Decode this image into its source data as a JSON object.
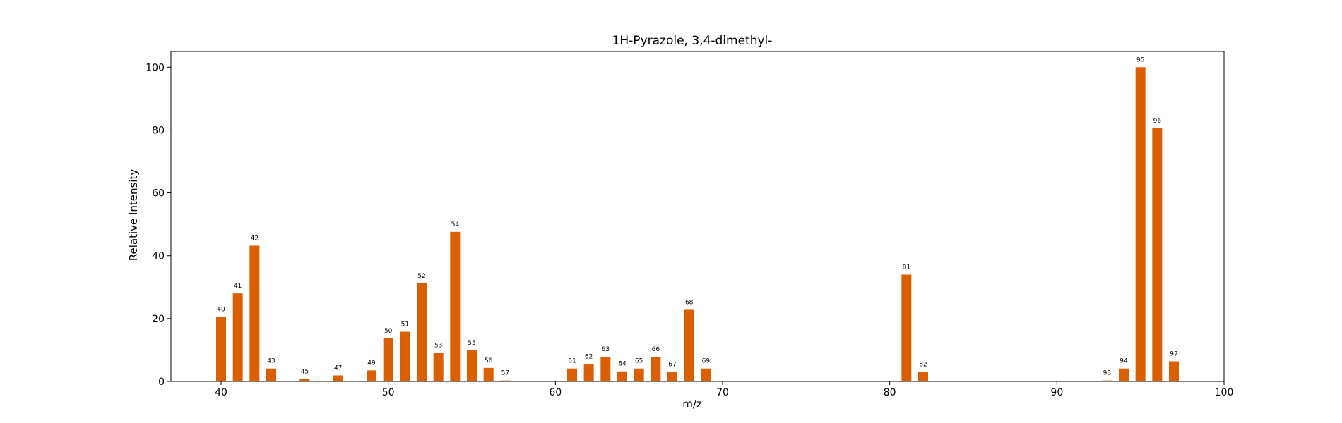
{
  "chart_data": {
    "type": "bar",
    "title": "1H-Pyrazole, 3,4-dimethyl-",
    "xlabel": "m/z",
    "ylabel": "Relative Intensity",
    "xlim": [
      37,
      100
    ],
    "ylim": [
      0,
      105
    ],
    "xticks": [
      40,
      50,
      60,
      70,
      80,
      90,
      100
    ],
    "yticks": [
      0,
      20,
      40,
      60,
      80,
      100
    ],
    "bar_color": "#d95f02",
    "grid": false,
    "x": [
      40,
      41,
      42,
      43,
      45,
      47,
      49,
      50,
      51,
      52,
      53,
      54,
      55,
      56,
      57,
      61,
      62,
      63,
      64,
      65,
      66,
      67,
      68,
      69,
      81,
      82,
      93,
      94,
      95,
      96,
      97
    ],
    "values": [
      20.5,
      28.0,
      43.2,
      4.1,
      0.8,
      1.9,
      3.5,
      13.7,
      15.8,
      31.2,
      9.1,
      47.6,
      9.9,
      4.3,
      0.3,
      4.1,
      5.5,
      7.8,
      3.2,
      4.1,
      7.8,
      3.0,
      22.8,
      4.1,
      34.0,
      3.0,
      0.3,
      4.1,
      100.0,
      80.6,
      6.4
    ],
    "labels": [
      "40",
      "41",
      "42",
      "43",
      "45",
      "47",
      "49",
      "50",
      "51",
      "52",
      "53",
      "54",
      "55",
      "56",
      "57",
      "61",
      "62",
      "63",
      "64",
      "65",
      "66",
      "67",
      "68",
      "69",
      "81",
      "82",
      "93",
      "94",
      "95",
      "96",
      "97"
    ]
  }
}
